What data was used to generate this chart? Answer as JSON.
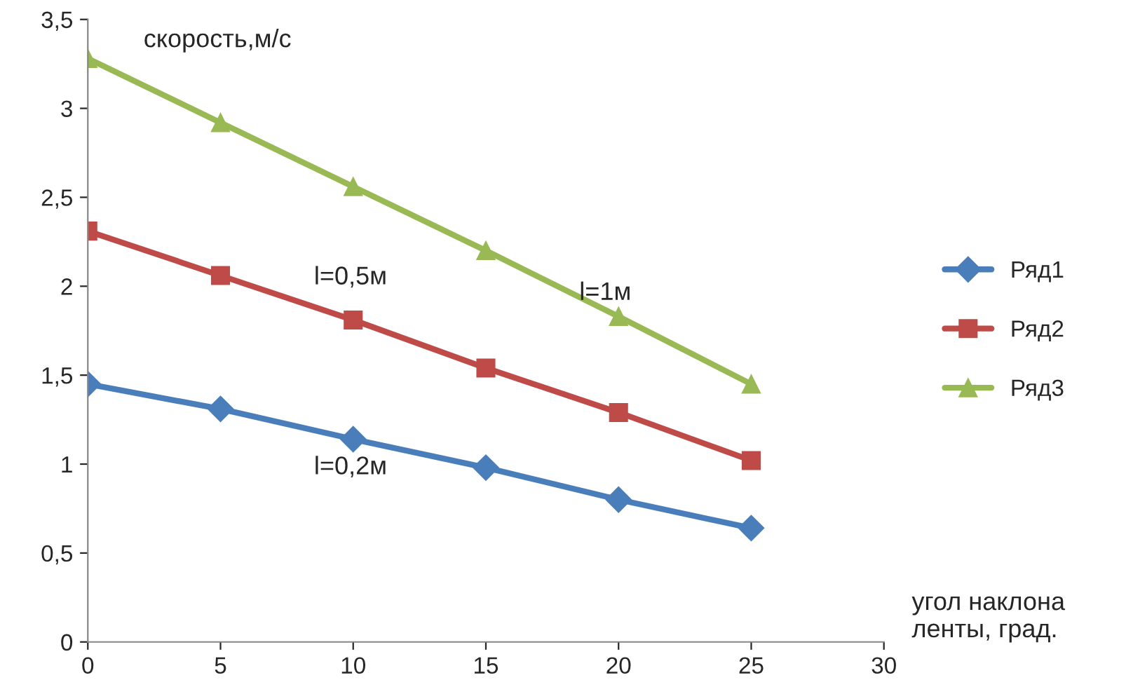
{
  "chart_data": {
    "type": "line",
    "ylabel": "скорость,м/с",
    "xlabel": "угол наклона ленты, град.",
    "x": [
      0,
      5,
      10,
      15,
      20,
      25
    ],
    "series": [
      {
        "name": "Ряд1",
        "color": "#4a7ebb",
        "marker": "diamond",
        "values": [
          1.45,
          1.31,
          1.14,
          0.98,
          0.8,
          0.64
        ]
      },
      {
        "name": "Ряд2",
        "color": "#be4b48",
        "marker": "square",
        "values": [
          2.31,
          2.06,
          1.81,
          1.54,
          1.29,
          1.02
        ]
      },
      {
        "name": "Ряд3",
        "color": "#98b954",
        "marker": "triangle",
        "values": [
          3.28,
          2.92,
          2.56,
          2.2,
          1.83,
          1.45
        ]
      }
    ],
    "xlim": [
      0,
      30
    ],
    "xticks": [
      0,
      5,
      10,
      15,
      20,
      25,
      30
    ],
    "ylim": [
      0,
      3.5
    ],
    "yticks": [
      {
        "value": 0,
        "label": "0"
      },
      {
        "value": 0.5,
        "label": "0,5"
      },
      {
        "value": 1,
        "label": "1"
      },
      {
        "value": 1.5,
        "label": "1,5"
      },
      {
        "value": 2,
        "label": "2"
      },
      {
        "value": 2.5,
        "label": "2,5"
      },
      {
        "value": 3,
        "label": "3"
      },
      {
        "value": 3.5,
        "label": "3,5"
      }
    ],
    "annotations": [
      "l=0,5м",
      "l=1м",
      "l=0,2м"
    ],
    "grid": false,
    "legend": "right",
    "line_style": "solid"
  }
}
